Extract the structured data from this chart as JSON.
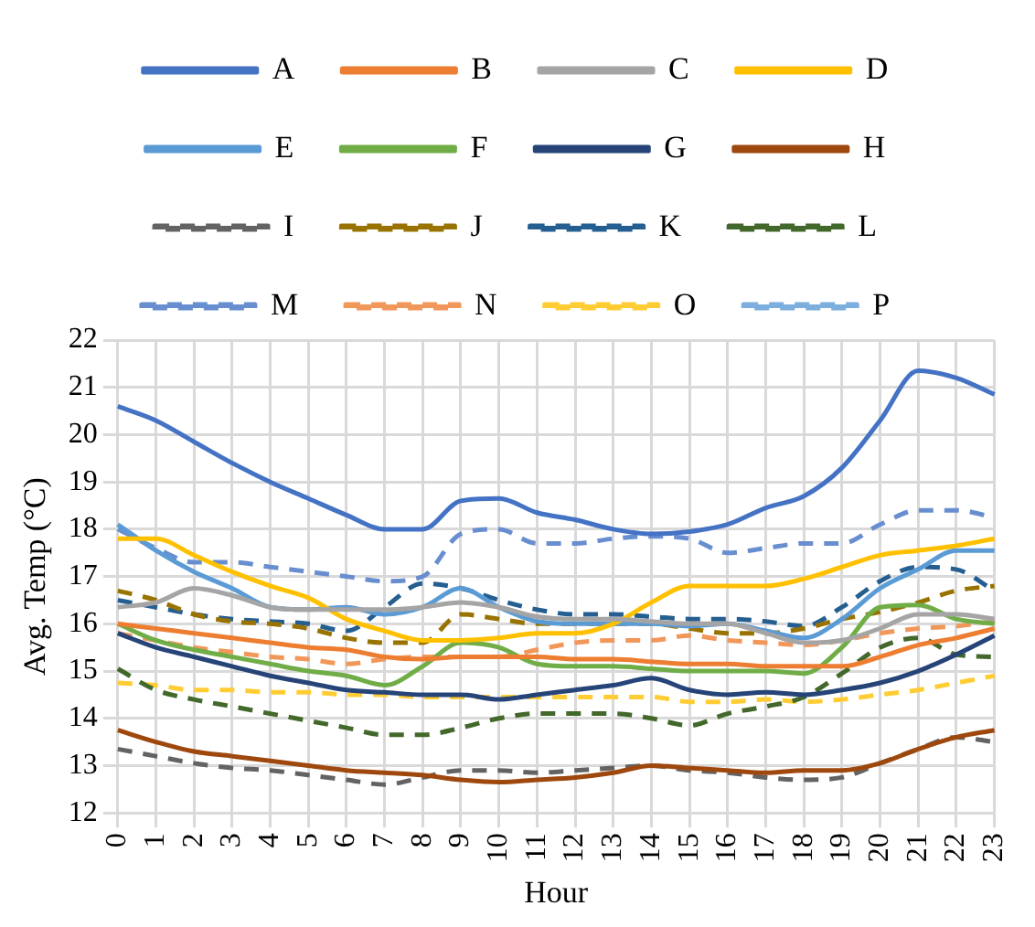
{
  "chart_data": {
    "type": "line",
    "xlabel": "Hour",
    "ylabel": "Avg. Temp (°C)",
    "categories": [
      "0",
      "1",
      "2",
      "3",
      "4",
      "5",
      "6",
      "7",
      "8",
      "9",
      "10",
      "11",
      "12",
      "13",
      "14",
      "15",
      "16",
      "17",
      "18",
      "19",
      "20",
      "21",
      "22",
      "23"
    ],
    "ylim": [
      12,
      22
    ],
    "yticks": [
      12,
      13,
      14,
      15,
      16,
      17,
      18,
      19,
      20,
      21,
      22
    ],
    "grid": true,
    "legend": "top",
    "marker": "none",
    "series": [
      {
        "name": "A",
        "color": "#4472c4",
        "line_style": "solid",
        "values": [
          20.6,
          20.3,
          19.85,
          19.4,
          19.0,
          18.65,
          18.3,
          18.0,
          18.0,
          18.6,
          18.65,
          18.35,
          18.2,
          18.0,
          17.9,
          17.95,
          18.1,
          18.45,
          18.7,
          19.3,
          20.3,
          21.35,
          21.2,
          20.85
        ]
      },
      {
        "name": "B",
        "color": "#ed7d31",
        "line_style": "solid",
        "values": [
          16.0,
          15.9,
          15.8,
          15.7,
          15.6,
          15.5,
          15.45,
          15.3,
          15.25,
          15.3,
          15.3,
          15.3,
          15.25,
          15.25,
          15.2,
          15.15,
          15.15,
          15.1,
          15.1,
          15.1,
          15.3,
          15.55,
          15.7,
          15.9
        ]
      },
      {
        "name": "C",
        "color": "#a5a5a5",
        "line_style": "solid",
        "values": [
          16.35,
          16.45,
          16.75,
          16.6,
          16.35,
          16.3,
          16.3,
          16.3,
          16.35,
          16.45,
          16.35,
          16.15,
          16.1,
          16.1,
          16.05,
          16.0,
          16.0,
          15.8,
          15.6,
          15.65,
          15.9,
          16.2,
          16.2,
          16.1
        ]
      },
      {
        "name": "D",
        "color": "#ffc000",
        "line_style": "solid",
        "values": [
          17.8,
          17.8,
          17.45,
          17.1,
          16.8,
          16.55,
          16.1,
          15.85,
          15.65,
          15.65,
          15.7,
          15.8,
          15.8,
          16.0,
          16.45,
          16.8,
          16.8,
          16.8,
          16.95,
          17.2,
          17.45,
          17.55,
          17.65,
          17.8
        ]
      },
      {
        "name": "E",
        "color": "#5b9bd5",
        "line_style": "solid",
        "values": [
          18.1,
          17.55,
          17.1,
          16.75,
          16.35,
          16.3,
          16.35,
          16.2,
          16.35,
          16.75,
          16.35,
          16.05,
          16.0,
          16.0,
          16.0,
          15.95,
          16.0,
          15.85,
          15.7,
          16.1,
          16.75,
          17.15,
          17.55,
          17.55
        ]
      },
      {
        "name": "F",
        "color": "#70ad47",
        "line_style": "solid",
        "values": [
          16.0,
          15.65,
          15.45,
          15.3,
          15.15,
          15.0,
          14.9,
          14.7,
          15.1,
          15.6,
          15.5,
          15.15,
          15.1,
          15.1,
          15.05,
          15.0,
          15.0,
          15.0,
          14.95,
          15.5,
          16.35,
          16.4,
          16.1,
          16.0
        ]
      },
      {
        "name": "G",
        "color": "#264478",
        "line_style": "solid",
        "values": [
          15.8,
          15.5,
          15.3,
          15.1,
          14.9,
          14.75,
          14.6,
          14.55,
          14.5,
          14.5,
          14.4,
          14.5,
          14.6,
          14.7,
          14.85,
          14.6,
          14.5,
          14.55,
          14.5,
          14.6,
          14.75,
          15.0,
          15.35,
          15.75
        ]
      },
      {
        "name": "H",
        "color": "#9e480e",
        "line_style": "solid",
        "values": [
          13.75,
          13.5,
          13.3,
          13.2,
          13.1,
          13.0,
          12.9,
          12.85,
          12.8,
          12.7,
          12.65,
          12.7,
          12.75,
          12.85,
          13.0,
          12.95,
          12.9,
          12.85,
          12.9,
          12.9,
          13.05,
          13.35,
          13.6,
          13.75
        ]
      },
      {
        "name": "I",
        "color": "#636363",
        "line_style": "dashed",
        "values": [
          13.35,
          13.2,
          13.05,
          12.95,
          12.9,
          12.8,
          12.7,
          12.6,
          12.75,
          12.9,
          12.9,
          12.85,
          12.9,
          12.95,
          13.0,
          12.9,
          12.85,
          12.75,
          12.7,
          12.75,
          13.05,
          13.35,
          13.6,
          13.5
        ]
      },
      {
        "name": "J",
        "color": "#997300",
        "line_style": "dashed",
        "values": [
          16.7,
          16.5,
          16.2,
          16.05,
          16.0,
          15.9,
          15.7,
          15.6,
          15.6,
          16.2,
          16.1,
          16.0,
          16.0,
          16.0,
          16.0,
          15.9,
          15.8,
          15.8,
          15.9,
          16.1,
          16.25,
          16.45,
          16.7,
          16.8
        ]
      },
      {
        "name": "K",
        "color": "#255e91",
        "line_style": "dashed",
        "values": [
          16.5,
          16.35,
          16.2,
          16.1,
          16.05,
          16.0,
          15.85,
          16.35,
          16.85,
          16.75,
          16.5,
          16.3,
          16.2,
          16.2,
          16.15,
          16.1,
          16.1,
          16.05,
          15.95,
          16.35,
          16.9,
          17.2,
          17.15,
          16.7
        ]
      },
      {
        "name": "L",
        "color": "#43682b",
        "line_style": "dashed",
        "values": [
          15.05,
          14.6,
          14.4,
          14.25,
          14.1,
          13.95,
          13.8,
          13.65,
          13.65,
          13.8,
          14.0,
          14.1,
          14.1,
          14.1,
          14.0,
          13.85,
          14.1,
          14.25,
          14.45,
          14.95,
          15.5,
          15.7,
          15.35,
          15.3
        ]
      },
      {
        "name": "M",
        "color": "#698ed0",
        "line_style": "dashed",
        "values": [
          18.0,
          17.6,
          17.3,
          17.3,
          17.2,
          17.1,
          17.0,
          16.9,
          17.0,
          17.9,
          18.0,
          17.7,
          17.7,
          17.8,
          17.85,
          17.8,
          17.5,
          17.6,
          17.7,
          17.7,
          18.1,
          18.4,
          18.4,
          18.25
        ]
      },
      {
        "name": "N",
        "color": "#f1975a",
        "line_style": "dashed",
        "values": [
          15.8,
          15.65,
          15.5,
          15.4,
          15.3,
          15.25,
          15.15,
          15.25,
          15.3,
          15.3,
          15.3,
          15.45,
          15.6,
          15.65,
          15.65,
          15.75,
          15.65,
          15.6,
          15.55,
          15.65,
          15.8,
          15.9,
          15.95,
          16.05
        ]
      },
      {
        "name": "O",
        "color": "#ffcd33",
        "line_style": "dashed",
        "values": [
          14.75,
          14.7,
          14.6,
          14.6,
          14.55,
          14.55,
          14.5,
          14.5,
          14.45,
          14.45,
          14.45,
          14.45,
          14.45,
          14.45,
          14.45,
          14.35,
          14.35,
          14.4,
          14.35,
          14.4,
          14.5,
          14.6,
          14.75,
          14.9
        ]
      },
      {
        "name": "P",
        "color": "#7cafdd",
        "line_style": "dashed",
        "values": [
          null,
          null,
          null,
          null,
          null,
          null,
          null,
          null,
          null,
          null,
          null,
          null,
          null,
          null,
          null,
          null,
          null,
          null,
          null,
          null,
          null,
          null,
          null,
          null
        ]
      }
    ]
  }
}
